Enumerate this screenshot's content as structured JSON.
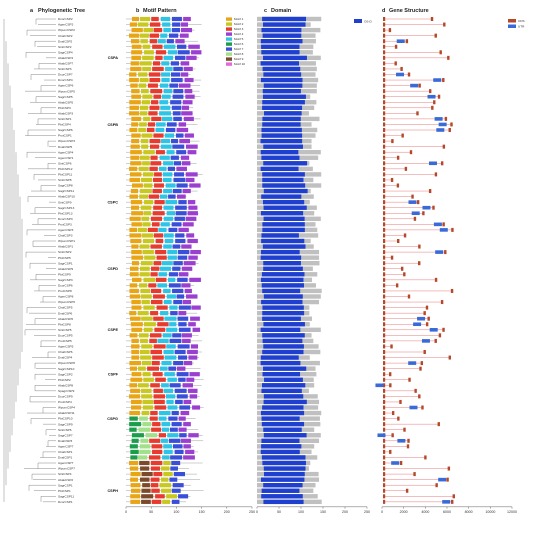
{
  "panels": {
    "a": {
      "letter": "a",
      "title": "Phylogenetic Tree"
    },
    "b": {
      "letter": "b",
      "title": "Motif Pattern"
    },
    "c": {
      "letter": "c",
      "title": "Domain"
    },
    "d": {
      "letter": "d",
      "title": "Gene Structure"
    }
  },
  "taxa": [
    "DcorCSP2",
    "AgenCSP2",
    "WpumCSP2",
    "ChalCSP2",
    "DvalCSP2",
    "SintCSP2",
    "SagrCSP4",
    "AbakCSP4",
    "AbakCSP7",
    "SintCSP3",
    "DcorCSP7",
    "DcorCSP4",
    "AgenCSP6",
    "WpumCSP5",
    "SagrCSP5",
    "AbakCSP5",
    "PbtCSP3",
    "AbakCSP3",
    "SintCSP1",
    "PbtCSP4",
    "SagrCSP6",
    "ProtCSP1",
    "WpumCSP3",
    "DvalCSP5",
    "AgenCSP4",
    "AgenCSP1",
    "SintCSP6",
    "PbtCSP12",
    "PbtCSP11",
    "SintCSP8",
    "SagrCSP8",
    "SagrCSP11",
    "AbakCSP10",
    "SintCSP9",
    "SagrCSP13",
    "PbtCSP13",
    "DcorCSP3",
    "ProtCSP3",
    "AgenCSP3",
    "ChalCSP3",
    "WpumCSP1",
    "AbakCSP1",
    "SintCSP2",
    "PbtCSP5",
    "SagrCSP1",
    "AbakCSP9",
    "PbtCSP9",
    "SagrCSP3",
    "DcorCSP6",
    "ProtCSP8",
    "AgenCSP8",
    "WpumCSP6",
    "ChalCSP5",
    "DvalCSP6",
    "AbakCSP6",
    "PbtCSP8",
    "SintCSP5",
    "DcorCSP5",
    "ProtCSP5",
    "AgenCSP5",
    "ChalCSP6",
    "DvalCSP4",
    "WpumCSP8",
    "SagrCSP10",
    "SagrCSP2",
    "PbtCSP2",
    "AbakCSP8",
    "SpagrCSP9",
    "DcorCSP9",
    "ProtCSP4",
    "WpumCSP4",
    "AbakCSP11",
    "PbtCSP10",
    "SagrCSP9",
    "SintCSP6",
    "SagrCSP7",
    "DvalCSP3",
    "AgenCSP7",
    "ChalCSP1",
    "DvalCSP1",
    "AgenCSP7",
    "WpumCSP7",
    "SintCSP4",
    "AbakCSP2",
    "SagrCSP1",
    "PbtCSP1",
    "SagrCSP11",
    "DcorCSP1"
  ],
  "groups": [
    {
      "name": "CSPA",
      "row": 7
    },
    {
      "name": "CSPB",
      "row": 19
    },
    {
      "name": "CSPC",
      "row": 33
    },
    {
      "name": "CSPD",
      "row": 45
    },
    {
      "name": "CSPE",
      "row": 56
    },
    {
      "name": "CSPF",
      "row": 64
    },
    {
      "name": "CSPG",
      "row": 72
    },
    {
      "name": "CSPH",
      "row": 85
    }
  ],
  "motif_legend": [
    "Motif 1",
    "Motif 2",
    "Motif 3",
    "Motif 4",
    "Motif 5",
    "Motif 6",
    "Motif 7",
    "Motif 8",
    "Motif 9",
    "Motif 10"
  ],
  "domain_legend": [
    "OS-D"
  ],
  "gene_legend": [
    "CDS",
    "UTR"
  ],
  "axes": {
    "motif": {
      "ticks": [
        "0",
        "50",
        "100",
        "150",
        "200",
        "250"
      ],
      "unit": "aa"
    },
    "domain": {
      "ticks": [
        "0",
        "50",
        "100",
        "150",
        "200",
        "250"
      ],
      "unit": "aa"
    },
    "gene": {
      "ticks": [
        "0",
        "2000",
        "4000",
        "6000",
        "8000",
        "10000",
        "12000"
      ],
      "unit": "bp"
    }
  },
  "colors": {
    "motif1": "#e63b2e",
    "motif2": "#3a4fd8",
    "motif3": "#2ec4e6",
    "motif4": "#1a9e4a",
    "motif5": "#e8a617",
    "motif6": "#9a3fd0",
    "motif7": "#c8c820",
    "motif8": "#7b4a2a",
    "motif9": "#e26ad8",
    "motif10": "#a3e08a",
    "domain_bg": "#c0c0c0",
    "domain": "#1f3fcf",
    "cds": "#b5472a",
    "utr": "#3a6ad8",
    "intron": "#d44"
  }
}
